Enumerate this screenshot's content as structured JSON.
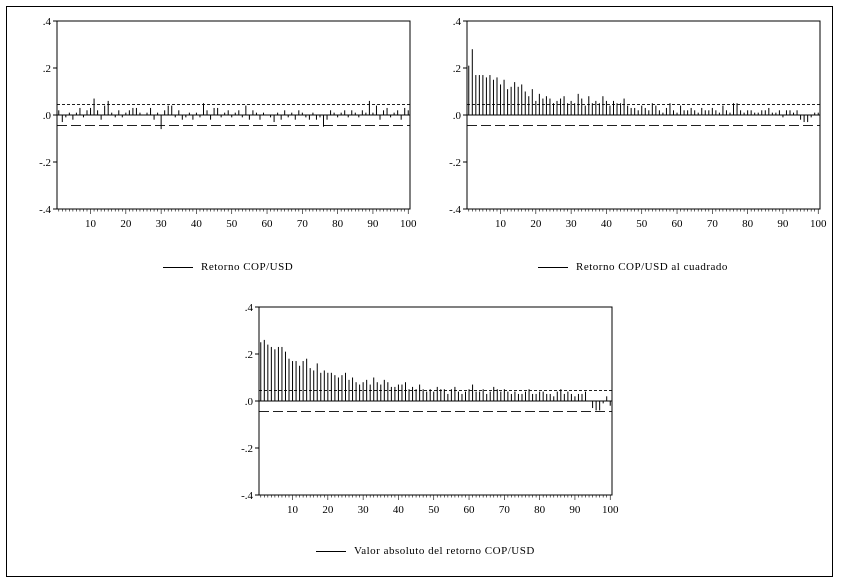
{
  "chart_data": [
    {
      "type": "bar",
      "title": "",
      "legend": "Retorno COP/USD",
      "xlim": [
        1,
        100
      ],
      "ylim": [
        -0.4,
        0.4
      ],
      "ytick_labels": [
        ".4",
        ".2",
        ".0",
        "-.2",
        "-.4"
      ],
      "xtick_labels": [
        "10",
        "20",
        "30",
        "40",
        "50",
        "60",
        "70",
        "80",
        "90",
        "100"
      ],
      "bands": [
        0.045,
        -0.045
      ],
      "lags": [
        1,
        2,
        3,
        4,
        5,
        6,
        7,
        8,
        9,
        10,
        11,
        12,
        13,
        14,
        15,
        16,
        17,
        18,
        19,
        20,
        21,
        22,
        23,
        24,
        25,
        26,
        27,
        28,
        29,
        30,
        31,
        32,
        33,
        34,
        35,
        36,
        37,
        38,
        39,
        40,
        41,
        42,
        43,
        44,
        45,
        46,
        47,
        48,
        49,
        50,
        51,
        52,
        53,
        54,
        55,
        56,
        57,
        58,
        59,
        60,
        61,
        62,
        63,
        64,
        65,
        66,
        67,
        68,
        69,
        70,
        71,
        72,
        73,
        74,
        75,
        76,
        77,
        78,
        79,
        80,
        81,
        82,
        83,
        84,
        85,
        86,
        87,
        88,
        89,
        90,
        91,
        92,
        93,
        94,
        95,
        96,
        97,
        98,
        99,
        100
      ],
      "values": [
        0.02,
        -0.03,
        -0.01,
        0.01,
        -0.02,
        0.01,
        0.03,
        -0.01,
        0.02,
        0.03,
        0.07,
        0.02,
        -0.02,
        0.04,
        0.06,
        0.01,
        -0.01,
        0.02,
        -0.01,
        0.01,
        0.02,
        0.03,
        0.03,
        0.01,
        0.0,
        0.01,
        0.03,
        -0.02,
        0.01,
        -0.06,
        0.02,
        0.04,
        0.04,
        -0.01,
        0.02,
        -0.02,
        -0.01,
        0.01,
        -0.02,
        0.01,
        -0.01,
        0.05,
        0.02,
        -0.02,
        0.03,
        0.03,
        -0.01,
        0.01,
        0.02,
        -0.01,
        0.01,
        0.02,
        -0.01,
        0.04,
        -0.02,
        0.02,
        0.01,
        -0.02,
        0.01,
        0.0,
        -0.01,
        -0.03,
        0.01,
        -0.02,
        0.02,
        -0.01,
        0.01,
        -0.02,
        0.02,
        0.01,
        -0.01,
        -0.02,
        0.01,
        -0.02,
        -0.01,
        -0.05,
        -0.02,
        0.02,
        0.01,
        -0.01,
        0.01,
        0.02,
        -0.01,
        0.02,
        0.01,
        -0.01,
        0.02,
        0.01,
        0.06,
        0.01,
        0.04,
        -0.02,
        0.02,
        0.03,
        -0.01,
        0.01,
        0.02,
        -0.02,
        0.03,
        0.02
      ]
    },
    {
      "type": "bar",
      "title": "",
      "legend": "Retorno COP/USD al cuadrado",
      "xlim": [
        1,
        100
      ],
      "ylim": [
        -0.4,
        0.4
      ],
      "ytick_labels": [
        ".4",
        ".2",
        ".0",
        "-.2",
        "-.4"
      ],
      "xtick_labels": [
        "10",
        "20",
        "30",
        "40",
        "50",
        "60",
        "70",
        "80",
        "90",
        "100"
      ],
      "bands": [
        0.045,
        -0.045
      ],
      "lags": [
        1,
        2,
        3,
        4,
        5,
        6,
        7,
        8,
        9,
        10,
        11,
        12,
        13,
        14,
        15,
        16,
        17,
        18,
        19,
        20,
        21,
        22,
        23,
        24,
        25,
        26,
        27,
        28,
        29,
        30,
        31,
        32,
        33,
        34,
        35,
        36,
        37,
        38,
        39,
        40,
        41,
        42,
        43,
        44,
        45,
        46,
        47,
        48,
        49,
        50,
        51,
        52,
        53,
        54,
        55,
        56,
        57,
        58,
        59,
        60,
        61,
        62,
        63,
        64,
        65,
        66,
        67,
        68,
        69,
        70,
        71,
        72,
        73,
        74,
        75,
        76,
        77,
        78,
        79,
        80,
        81,
        82,
        83,
        84,
        85,
        86,
        87,
        88,
        89,
        90,
        91,
        92,
        93,
        94,
        95,
        96,
        97,
        98,
        99,
        100
      ],
      "values": [
        0.21,
        0.28,
        0.17,
        0.17,
        0.17,
        0.16,
        0.17,
        0.15,
        0.16,
        0.13,
        0.15,
        0.11,
        0.12,
        0.14,
        0.12,
        0.13,
        0.1,
        0.08,
        0.11,
        0.06,
        0.09,
        0.07,
        0.08,
        0.07,
        0.05,
        0.06,
        0.07,
        0.08,
        0.05,
        0.06,
        0.05,
        0.09,
        0.07,
        0.04,
        0.08,
        0.05,
        0.06,
        0.05,
        0.08,
        0.06,
        0.04,
        0.06,
        0.05,
        0.05,
        0.07,
        0.04,
        0.03,
        0.03,
        0.02,
        0.04,
        0.03,
        0.02,
        0.05,
        0.04,
        0.02,
        0.01,
        0.03,
        0.05,
        0.02,
        0.01,
        0.04,
        0.02,
        0.02,
        0.03,
        0.02,
        0.01,
        0.03,
        0.02,
        0.02,
        0.03,
        0.02,
        0.01,
        0.04,
        0.02,
        0.01,
        0.05,
        0.05,
        0.02,
        0.01,
        0.02,
        0.02,
        0.01,
        0.01,
        0.02,
        0.02,
        0.03,
        0.01,
        0.01,
        0.02,
        -0.01,
        0.02,
        0.02,
        0.01,
        0.02,
        -0.02,
        -0.03,
        -0.03,
        -0.01,
        0.01,
        0.01
      ]
    },
    {
      "type": "bar",
      "title": "",
      "legend": "Valor absoluto del retorno COP/USD",
      "xlim": [
        1,
        100
      ],
      "ylim": [
        -0.4,
        0.4
      ],
      "ytick_labels": [
        ".4",
        ".2",
        ".0",
        "-.2",
        "-.4"
      ],
      "xtick_labels": [
        "10",
        "20",
        "30",
        "40",
        "50",
        "60",
        "70",
        "80",
        "90",
        "100"
      ],
      "bands": [
        0.045,
        -0.045
      ],
      "lags": [
        1,
        2,
        3,
        4,
        5,
        6,
        7,
        8,
        9,
        10,
        11,
        12,
        13,
        14,
        15,
        16,
        17,
        18,
        19,
        20,
        21,
        22,
        23,
        24,
        25,
        26,
        27,
        28,
        29,
        30,
        31,
        32,
        33,
        34,
        35,
        36,
        37,
        38,
        39,
        40,
        41,
        42,
        43,
        44,
        45,
        46,
        47,
        48,
        49,
        50,
        51,
        52,
        53,
        54,
        55,
        56,
        57,
        58,
        59,
        60,
        61,
        62,
        63,
        64,
        65,
        66,
        67,
        68,
        69,
        70,
        71,
        72,
        73,
        74,
        75,
        76,
        77,
        78,
        79,
        80,
        81,
        82,
        83,
        84,
        85,
        86,
        87,
        88,
        89,
        90,
        91,
        92,
        93,
        94,
        95,
        96,
        97,
        98,
        99,
        100
      ],
      "values": [
        0.25,
        0.26,
        0.24,
        0.23,
        0.22,
        0.23,
        0.23,
        0.21,
        0.18,
        0.17,
        0.17,
        0.15,
        0.17,
        0.18,
        0.14,
        0.13,
        0.16,
        0.12,
        0.13,
        0.12,
        0.12,
        0.11,
        0.1,
        0.11,
        0.12,
        0.09,
        0.1,
        0.08,
        0.07,
        0.08,
        0.09,
        0.07,
        0.1,
        0.08,
        0.07,
        0.09,
        0.08,
        0.06,
        0.06,
        0.07,
        0.07,
        0.08,
        0.05,
        0.06,
        0.05,
        0.07,
        0.05,
        0.04,
        0.05,
        0.04,
        0.06,
        0.05,
        0.05,
        0.03,
        0.05,
        0.06,
        0.04,
        0.03,
        0.04,
        0.05,
        0.07,
        0.04,
        0.04,
        0.05,
        0.03,
        0.04,
        0.06,
        0.05,
        0.04,
        0.05,
        0.04,
        0.03,
        0.04,
        0.03,
        0.03,
        0.04,
        0.05,
        0.03,
        0.03,
        0.04,
        0.04,
        0.03,
        0.03,
        0.02,
        0.04,
        0.05,
        0.03,
        0.04,
        0.03,
        0.02,
        0.03,
        0.03,
        0.04,
        0.0,
        -0.03,
        -0.04,
        -0.04,
        -0.01,
        0.02,
        -0.02
      ]
    }
  ]
}
